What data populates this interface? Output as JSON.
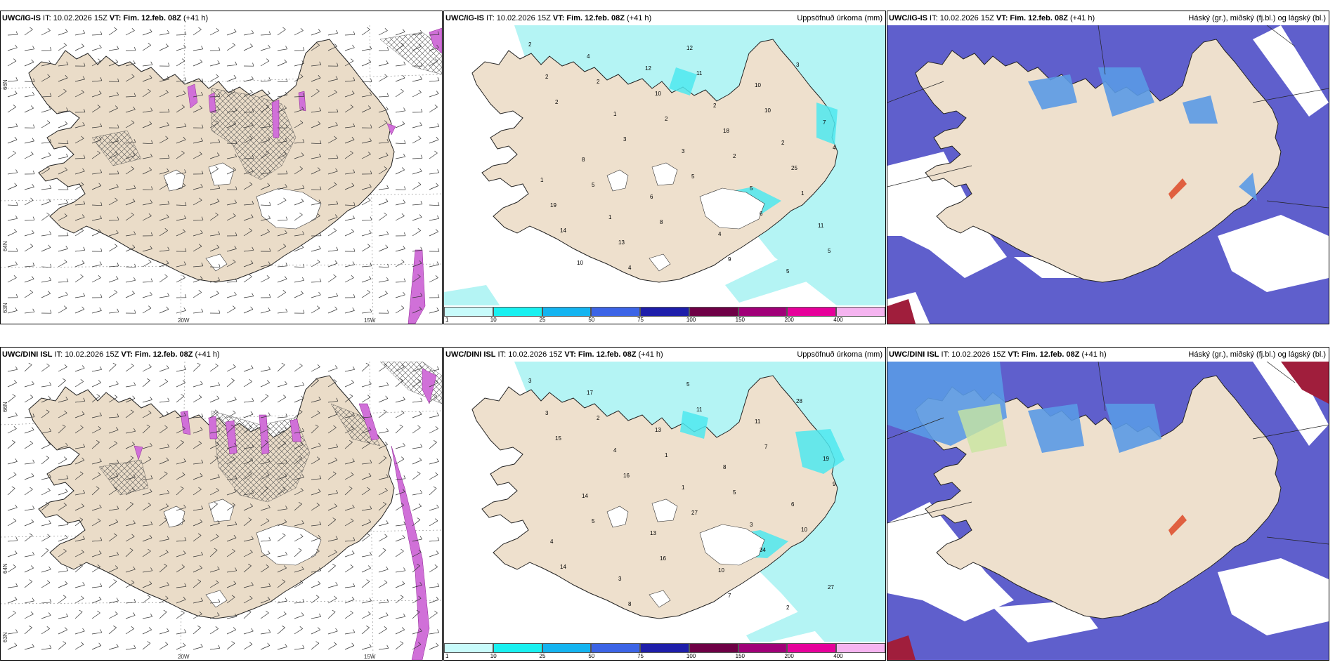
{
  "panels": [
    {
      "source": "UWC/IG-IS",
      "it": " IT: 10.02.2026 15Z ",
      "vt_label": "VT: Fim. 12.feb. 08Z",
      "lead": " (+41 h)",
      "title": "",
      "type": "wind"
    },
    {
      "source": "UWC/IG-IS",
      "it": " IT: 10.02.2026 15Z ",
      "vt_label": "VT: Fim. 12.feb. 08Z",
      "lead": " (+41 h)",
      "title": "Uppsöfnuð úrkoma (mm)",
      "type": "precip"
    },
    {
      "source": "UWC/IG-IS",
      "it": " IT: 10.02.2026 15Z ",
      "vt_label": "VT: Fim. 12.feb. 08Z",
      "lead": " (+41 h)",
      "title": "Háský (gr.), miðský (fj.bl.) og lágský (bl.)",
      "type": "cloud"
    },
    {
      "source": "UWC/DINI ISL",
      "it": " IT: 10.02.2026 15Z ",
      "vt_label": "VT: Fim. 12.feb. 08Z",
      "lead": " (+41 h)",
      "title": "",
      "type": "wind"
    },
    {
      "source": "UWC/DINI ISL",
      "it": " IT: 10.02.2026 15Z ",
      "vt_label": "VT: Fim. 12.feb. 08Z",
      "lead": " (+41 h)",
      "title": "Uppsöfnuð úrkoma (mm)",
      "type": "precip"
    },
    {
      "source": "UWC/DINI ISL",
      "it": " IT: 10.02.2026 15Z ",
      "vt_label": "VT: Fim. 12.feb. 08Z",
      "lead": " (+41 h)",
      "title": "Háský (gr.), miðský (fj.bl.) og lágský (bl.)",
      "type": "cloud"
    }
  ],
  "axis_labels": {
    "lat_66": "66N",
    "lat_64": "64N",
    "lat_63": "63N",
    "lon_20": "20W",
    "lon_15": "15W"
  },
  "colorbar": {
    "ticks": [
      "1",
      "10",
      "25",
      "50",
      "75",
      "100",
      "150",
      "200",
      "400"
    ],
    "colors": [
      "#c8fbfb",
      "#19f0f0",
      "#14b4f0",
      "#3c64e6",
      "#1e1eaa",
      "#6e0046",
      "#a00078",
      "#e6009b",
      "#f5b4f0"
    ]
  },
  "precip_values_ig": [
    "2",
    "2",
    "2",
    "2",
    "1",
    "14",
    "4",
    "11",
    "10",
    "4",
    "5",
    "8",
    "9",
    "3",
    "2",
    "3",
    "5",
    "6",
    "5",
    "4",
    "10",
    "18",
    "25",
    "19",
    "13",
    "12",
    "10",
    "7",
    "8",
    "6",
    "4",
    "5",
    "2",
    "1",
    "3",
    "5",
    "11",
    "10",
    "12",
    "2",
    "2",
    "1",
    "1"
  ],
  "precip_values_dini": [
    "3",
    "2",
    "1",
    "5",
    "10",
    "14",
    "8",
    "11",
    "7",
    "9",
    "5",
    "16",
    "7",
    "28",
    "15",
    "16",
    "27",
    "34",
    "27",
    "17",
    "13",
    "8",
    "6",
    "4",
    "3",
    "5",
    "11",
    "19",
    "14",
    "13",
    "10",
    "2",
    "3",
    "4",
    "1",
    "3"
  ],
  "colors": {
    "land": "#eee0cd",
    "land_wind": "#eadcc8",
    "sea_precip": "#b4f4f4",
    "cloud_high": "#5f5fcc",
    "cloud_mid": "#5a9ae6",
    "cloud_low": "#9ce6ee",
    "magenta": "#d070d8"
  }
}
